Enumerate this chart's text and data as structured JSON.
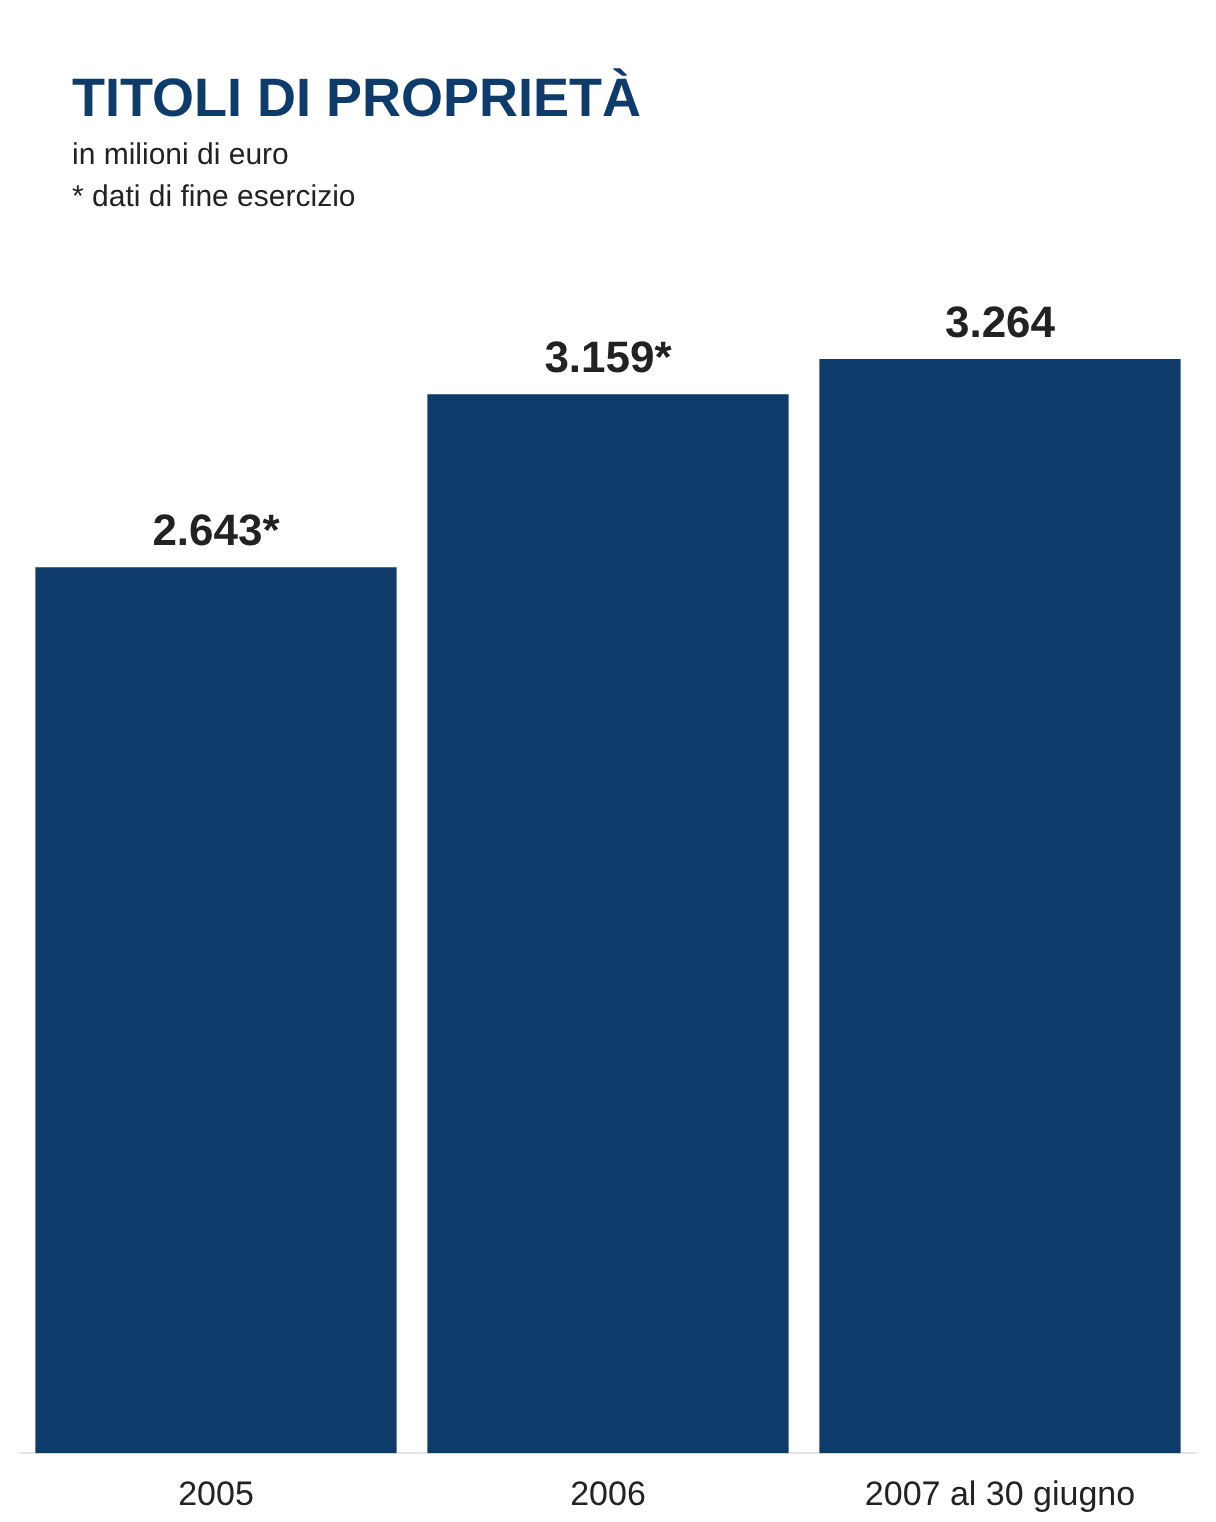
{
  "chart_data": {
    "type": "bar",
    "title": "TITOLI DI PROPRIETÀ",
    "subtitle": "in milioni di euro",
    "annotations": [
      "* dati di fine esercizio"
    ],
    "categories": [
      "2005",
      "2006",
      "2007 al 30 giugno"
    ],
    "values": [
      2643,
      3159,
      3264
    ],
    "color": "#0e3b69",
    "value_labels": [
      "2.643*",
      "3.159*",
      "3.264"
    ],
    "tick_labels": "x",
    "grid": false,
    "legend": false
  }
}
